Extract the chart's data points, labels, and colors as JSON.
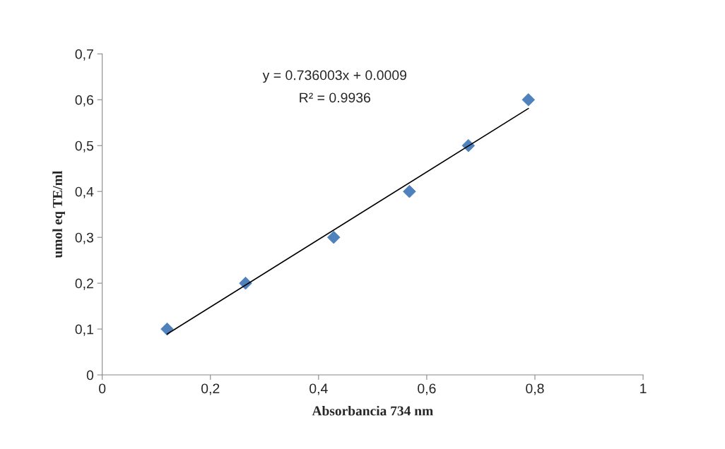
{
  "chart_data": {
    "type": "scatter",
    "xlabel": "Absorbancia 734 nm",
    "ylabel": "umol eq TE/ml",
    "series": [
      {
        "color": "#4f81bd",
        "marker": "diamond",
        "x": [
          0.12,
          0.265,
          0.428,
          0.568,
          0.677,
          0.788
        ],
        "values": [
          0.1,
          0.2,
          0.3,
          0.4,
          0.5,
          0.6
        ]
      },
      {
        "type": "line",
        "color": "#000000",
        "marker": "none",
        "line_style": "solid",
        "x": [
          0.12,
          0.788
        ],
        "values": [
          0.089,
          0.581
        ]
      }
    ],
    "annotations": [
      "y = 0.736003x + 0.0009",
      "R² = 0.9936"
    ],
    "xlim": [
      0,
      1
    ],
    "ylim": [
      0,
      0.7
    ],
    "xticks": [
      0,
      {
        "value": 0.2,
        "label": "0,2"
      },
      {
        "value": 0.4,
        "label": "0,4"
      },
      {
        "value": 0.6,
        "label": "0,6"
      },
      {
        "value": 0.8,
        "label": "0,8"
      },
      1
    ],
    "yticks": [
      0,
      {
        "value": 0.1,
        "label": "0,1"
      },
      {
        "value": 0.2,
        "label": "0,2"
      },
      {
        "value": 0.3,
        "label": "0,3"
      },
      {
        "value": 0.4,
        "label": "0,4"
      },
      {
        "value": 0.5,
        "label": "0,5"
      },
      {
        "value": 0.6,
        "label": "0,6"
      },
      {
        "value": 0.7,
        "label": "0,7"
      }
    ],
    "grid": false,
    "legend": false
  }
}
